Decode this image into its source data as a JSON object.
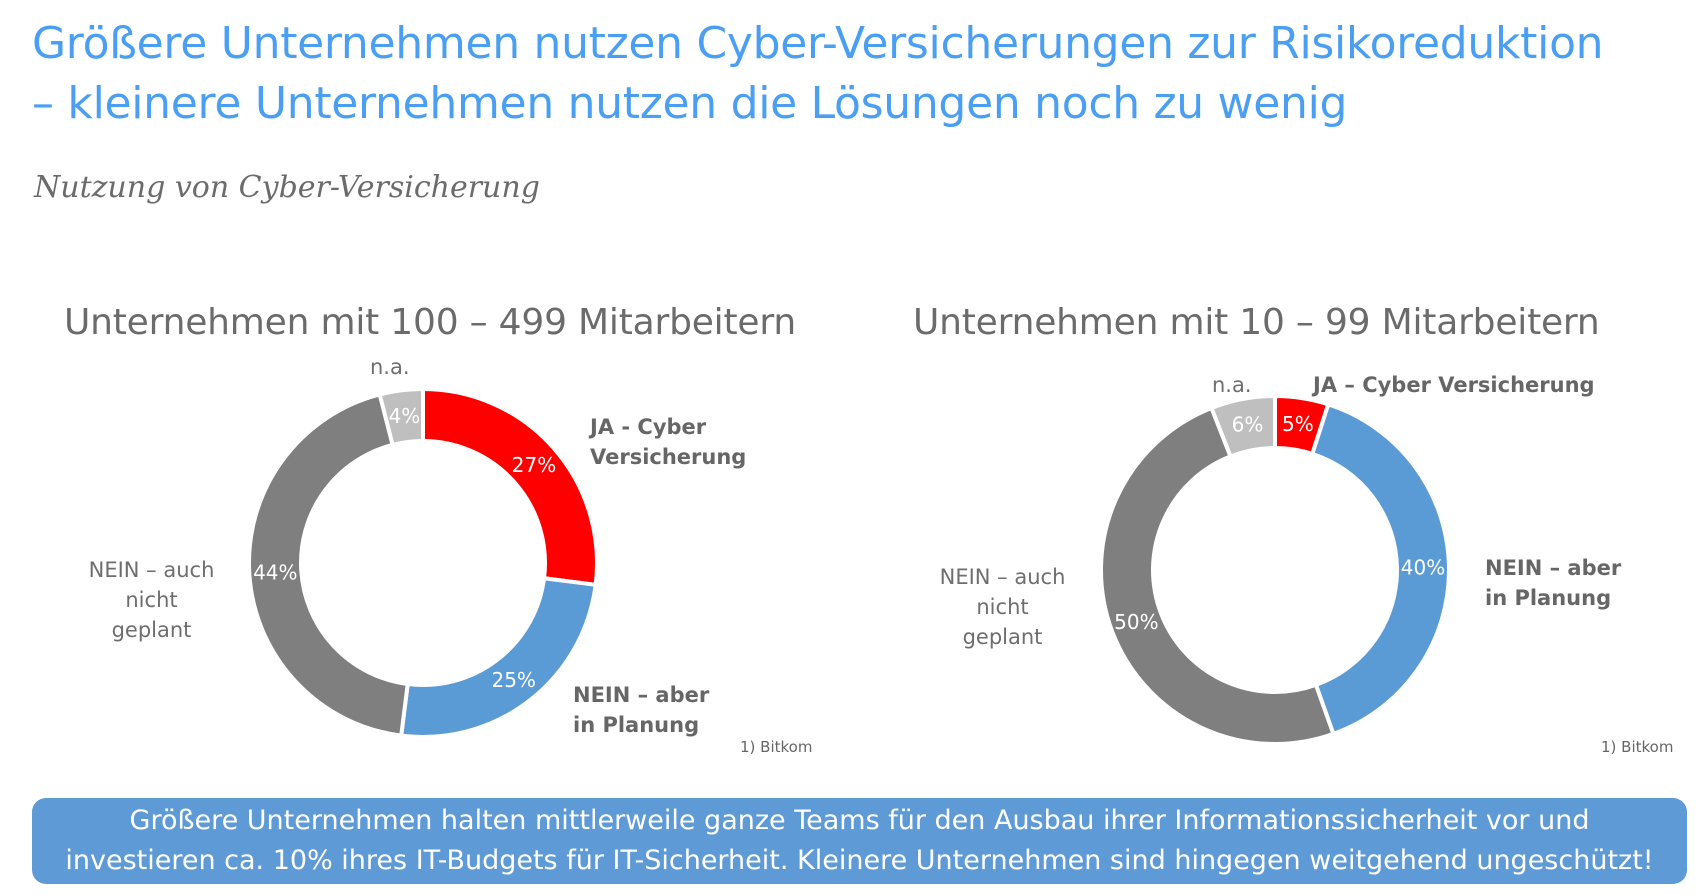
{
  "title": {
    "line1": "Größere Unternehmen nutzen Cyber-Versicherungen zur Risikoreduktion",
    "line2": "– kleinere Unternehmen nutzen die Lösungen noch zu wenig"
  },
  "subtitle": "Nutzung von Cyber-Versicherung",
  "chart_data": [
    {
      "type": "pie",
      "title": "Unternehmen mit 100 – 499 Mitarbeitern",
      "donut": true,
      "source": "1) Bitkom",
      "slices": [
        {
          "label": "JA - Cyber Versicherung",
          "label_lines": [
            "JA - Cyber",
            "Versicherung"
          ],
          "value": 27,
          "value_label": "27%",
          "color": "#ff0000",
          "label_bold": true
        },
        {
          "label": "NEIN – aber in Planung",
          "label_lines": [
            "NEIN – aber",
            "in Planung"
          ],
          "value": 25,
          "value_label": "25%",
          "color": "#5b9bd5",
          "label_bold": true
        },
        {
          "label": "NEIN – auch nicht geplant",
          "label_lines": [
            "NEIN – auch",
            "nicht geplant"
          ],
          "value": 44,
          "value_label": "44%",
          "color": "#7f7f7f",
          "label_bold": false
        },
        {
          "label": "n.a.",
          "label_lines": [
            "n.a."
          ],
          "value": 4,
          "value_label": "4%",
          "color": "#bfbfbf",
          "label_bold": false
        }
      ]
    },
    {
      "type": "pie",
      "title": "Unternehmen mit 10 – 99 Mitarbeitern",
      "donut": true,
      "source": "1) Bitkom",
      "slices": [
        {
          "label": "JA – Cyber Versicherung",
          "label_lines": [
            "JA – Cyber Versicherung"
          ],
          "value": 5,
          "value_label": "5%",
          "color": "#ff0000",
          "label_bold": true
        },
        {
          "label": "NEIN – aber in Planung",
          "label_lines": [
            "NEIN – aber",
            "in Planung"
          ],
          "value": 40,
          "value_label": "40%",
          "color": "#5b9bd5",
          "label_bold": true
        },
        {
          "label": "NEIN – auch nicht geplant",
          "label_lines": [
            "NEIN – auch",
            "nicht geplant"
          ],
          "value": 50,
          "value_label": "50%",
          "color": "#7f7f7f",
          "label_bold": false
        },
        {
          "label": "n.a.",
          "label_lines": [
            "n.a."
          ],
          "value": 6,
          "value_label": "6%",
          "color": "#bfbfbf",
          "label_bold": false
        }
      ]
    }
  ],
  "banner": {
    "line1": "Größere Unternehmen halten mittlerweile ganze Teams für den Ausbau ihrer Informationssicherheit vor und",
    "line2": "investieren ca. 10% ihres IT-Budgets für IT-Sicherheit. Kleinere Unternehmen sind hingegen weitgehend ungeschützt!"
  }
}
